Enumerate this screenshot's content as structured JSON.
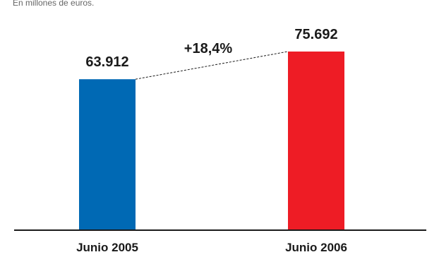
{
  "chart_data": {
    "type": "bar",
    "subtitle": "En millones de euros.",
    "categories": [
      "Junio 2005",
      "Junio 2006"
    ],
    "values": [
      63.912,
      75.692
    ],
    "value_labels": [
      "63.912",
      "75.692"
    ],
    "colors": [
      "#0069b4",
      "#ee1c25"
    ],
    "change_label": "+18,4%",
    "ylim": [
      0,
      85
    ],
    "grid": false,
    "legend": "none"
  }
}
